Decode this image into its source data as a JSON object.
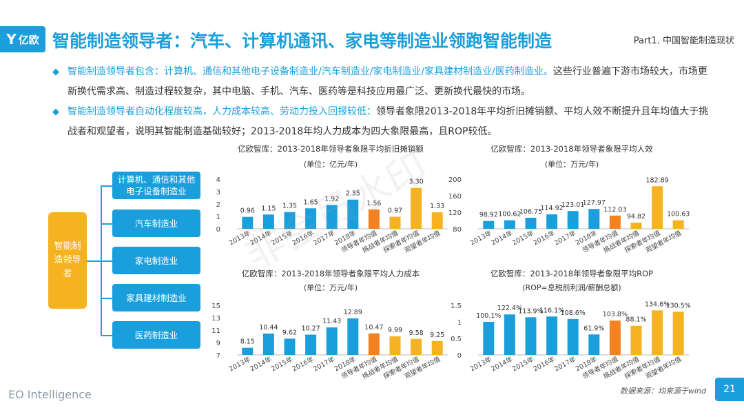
{
  "header": {
    "logo_text": "亿欧",
    "title": "智能制造领导者：汽车、计算机通讯、家电等制造业领跑智能制造",
    "part": "Part1. 中国智能制造现状"
  },
  "bullets": [
    {
      "highlight": "智能制造领导者包含：计算机、通信和其他电子设备制造业/汽车制造业/家电制造业/家具建材制造业/医药制造业。",
      "rest": "这些行业普遍下游市场较大，市场更新换代需求高、制造过程较复杂，其中电脑、手机、汽车、医药等是科技应用最广泛、更新换代最快的市场。"
    },
    {
      "highlight": "智能制造领导者自动化程度较高，人力成本较高、劳动力投入回报较低：",
      "rest": "领导者象限2013-2018年平均折旧摊销额、平均人效不断提升且年均值大于挑战者和观望者，说明其智能制造基础较好；2013-2018年均人力成本为四大象限最高，且ROP较低。"
    }
  ],
  "diagram": {
    "root": "智能制造领导者",
    "branches": [
      "计算机、通信和其他电子设备制造业",
      "汽车制造业",
      "家电制造业",
      "家具建材制造业",
      "医药制造业"
    ]
  },
  "colors": {
    "blue": "#1a9fdc",
    "orange": "#f58220",
    "yellow": "#f5b221"
  },
  "chart_data": [
    {
      "type": "bar",
      "title": "亿欧智库：2013-2018年领导者象限平均折旧摊销额",
      "subtitle": "(单位：亿元/年)",
      "categories": [
        "2013年",
        "2014年",
        "2015年",
        "2016年",
        "2017年",
        "2018年",
        "领导者年均值",
        "挑战者年均值",
        "探索者年均值",
        "观望者年均值"
      ],
      "values": [
        0.96,
        1.15,
        1.35,
        1.65,
        1.92,
        2.35,
        1.56,
        0.97,
        3.3,
        1.33
      ],
      "labels": [
        "0.96",
        "1.15",
        "1.35",
        "1.65",
        "1.92",
        "2.35",
        "1.56",
        "0.97",
        "3.30",
        "1.33"
      ],
      "ylim": [
        0,
        4
      ],
      "yticks": [
        "0",
        "1",
        "2",
        "3",
        "4"
      ],
      "grid": false
    },
    {
      "type": "bar",
      "title": "亿欧智库：2013-2018年领导者象限平均人效",
      "subtitle": "(单位：万元/年)",
      "categories": [
        "2013年",
        "2014年",
        "2015年",
        "2016年",
        "2017年",
        "2018年",
        "领导者年均值",
        "挑战者年均值",
        "探索者年均值",
        "观望者年均值"
      ],
      "values": [
        98.92,
        100.62,
        106.75,
        114.92,
        123.01,
        127.97,
        112.03,
        94.82,
        182.89,
        100.63
      ],
      "labels": [
        "98.92",
        "100.62",
        "106.75",
        "114.92",
        "123.01",
        "127.97",
        "112.03",
        "94.82",
        "182.89",
        "100.63"
      ],
      "ylim": [
        80,
        200
      ],
      "yticks": [
        "80",
        "120",
        "160",
        "200"
      ],
      "grid": false
    },
    {
      "type": "bar",
      "title": "亿欧智库：2013-2018年领导者象限平均人力成本",
      "subtitle": "(单位：万元/年)",
      "categories": [
        "2013年",
        "2014年",
        "2015年",
        "2016年",
        "2017年",
        "2018年",
        "领导者年均值",
        "挑战者年均值",
        "探索者年均值",
        "观望者年均值"
      ],
      "values": [
        8.15,
        10.44,
        9.62,
        10.27,
        11.43,
        12.89,
        10.47,
        9.99,
        9.58,
        9.25
      ],
      "labels": [
        "8.15",
        "10.44",
        "9.62",
        "10.27",
        "11.43",
        "12.89",
        "10.47",
        "9.99",
        "9.58",
        "9.25"
      ],
      "ylim": [
        7,
        15
      ],
      "yticks": [
        "7",
        "9",
        "11",
        "13",
        "15"
      ],
      "grid": false
    },
    {
      "type": "bar",
      "title": "亿欧智库：2013-2018年领导者象限平均ROP",
      "subtitle": "(ROP=息税前利润/薪酬总额)",
      "categories": [
        "2013年",
        "2014年",
        "2015年",
        "2016年",
        "2017年",
        "2018年",
        "领导者年均值",
        "挑战者年均值",
        "探索者年均值",
        "观望者年均值"
      ],
      "values": [
        1.001,
        1.224,
        1.139,
        1.161,
        1.086,
        0.619,
        1.038,
        0.881,
        1.346,
        1.305
      ],
      "labels": [
        "100.1%",
        "122.4%",
        "113.9%",
        "116.1%",
        "108.6%",
        "61.9%",
        "103.8%",
        "88.1%",
        "134.6%",
        "130.5%"
      ],
      "ylim": [
        0,
        1.5
      ],
      "yticks": [
        "0",
        "0.5",
        "1",
        "1.5"
      ],
      "grid": false
    }
  ],
  "watermark": "非会员水印",
  "footer": {
    "brand": "EO Intelligence",
    "source": "数据来源：均来源于wind",
    "page": "21"
  }
}
